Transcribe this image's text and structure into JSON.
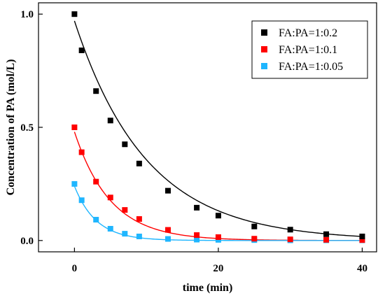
{
  "chart_data": {
    "type": "scatter",
    "xlabel": "time (min)",
    "ylabel": "Concentration of PA (mol/L)",
    "xlim": [
      -5,
      42
    ],
    "ylim": [
      -0.05,
      1.05
    ],
    "xticks": [
      0,
      20,
      40
    ],
    "yticks": [
      0.0,
      0.5,
      1.0
    ],
    "ytick_labels": [
      "0.0",
      "0.5",
      "1.0"
    ],
    "grid": false,
    "legend": "top-right",
    "series": [
      {
        "name": "FA:PA=1:0.2",
        "color": "#000000",
        "x": [
          0,
          1,
          3,
          5,
          7,
          9,
          13,
          17,
          20,
          25,
          30,
          35,
          40
        ],
        "y": [
          1.0,
          0.84,
          0.66,
          0.53,
          0.425,
          0.34,
          0.22,
          0.145,
          0.11,
          0.062,
          0.048,
          0.028,
          0.018
        ],
        "fit": {
          "a": 0.97,
          "k": 0.1
        }
      },
      {
        "name": "FA:PA=1:0.1",
        "color": "#ff0000",
        "x": [
          0,
          1,
          3,
          5,
          7,
          9,
          13,
          17,
          20,
          25,
          30,
          35,
          40
        ],
        "y": [
          0.5,
          0.39,
          0.26,
          0.19,
          0.135,
          0.095,
          0.047,
          0.024,
          0.015,
          0.008,
          0.005,
          0.003,
          0.002
        ],
        "fit": {
          "a": 0.48,
          "k": 0.2
        }
      },
      {
        "name": "FA:PA=1:0.05",
        "color": "#1fb6ff",
        "x": [
          0,
          1,
          3,
          5,
          7,
          9,
          13,
          17,
          20,
          25,
          30,
          35,
          40
        ],
        "y": [
          0.25,
          0.178,
          0.092,
          0.052,
          0.03,
          0.018,
          0.007,
          0.004,
          0.003,
          0.002,
          0.001,
          0.001,
          0.001
        ],
        "fit": {
          "a": 0.24,
          "k": 0.33
        }
      }
    ]
  }
}
